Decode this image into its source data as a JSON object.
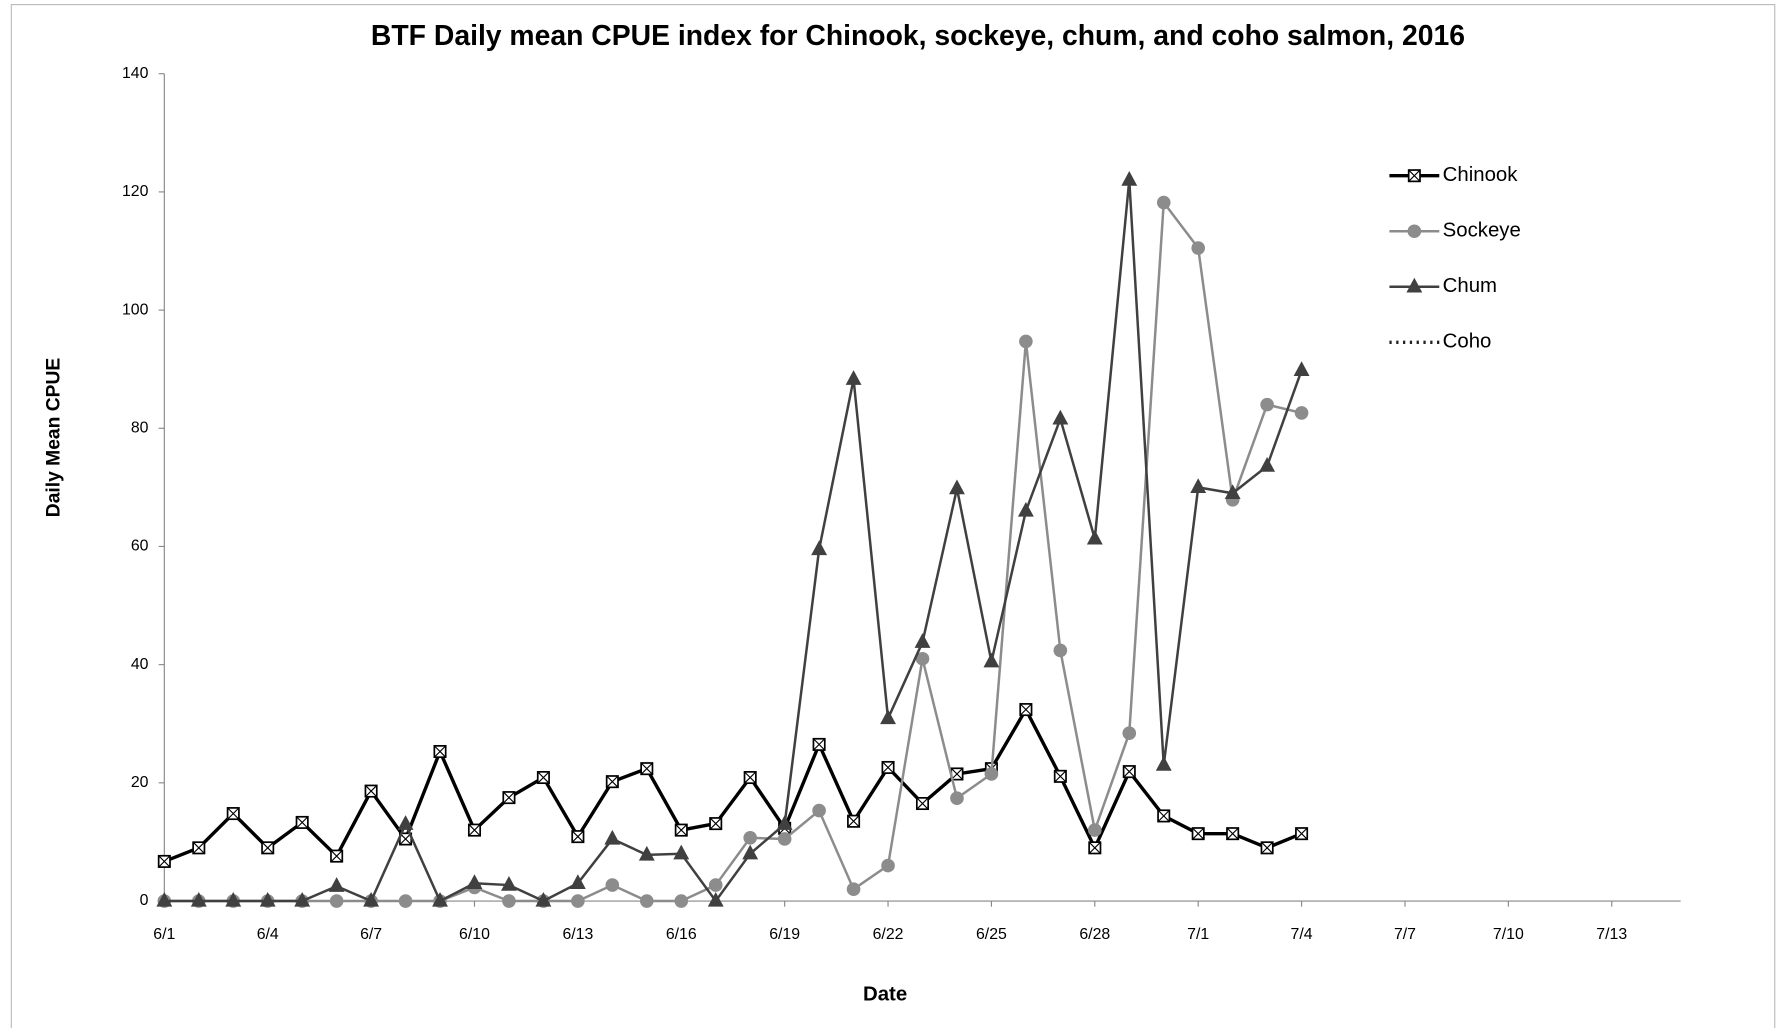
{
  "chart_data": {
    "type": "line",
    "title": "BTF Daily mean CPUE index for Chinook, sockeye, chum, and coho salmon, 2016",
    "x_label": "Date",
    "y_label": "Daily Mean CPUE",
    "categories": [
      "6/1",
      null,
      null,
      "6/4",
      null,
      null,
      "6/7",
      null,
      null,
      "6/10",
      null,
      null,
      "6/13",
      null,
      null,
      "6/16",
      null,
      null,
      "6/19",
      null,
      null,
      "6/22",
      null,
      null,
      "6/25",
      null,
      null,
      "6/28",
      null,
      null,
      "7/1",
      null,
      null,
      "7/4",
      null,
      null,
      "7/7",
      null,
      null,
      "7/10",
      null,
      null,
      "7/13",
      null,
      null
    ],
    "ylim": [
      0,
      140
    ],
    "yticks": [
      0,
      20,
      40,
      60,
      80,
      100,
      120,
      140
    ],
    "grid": false,
    "legend": "right",
    "series": [
      {
        "name": "Chinook",
        "color": "#000000",
        "marker": "square-x",
        "values": [
          6.7,
          9,
          14.8,
          9,
          13.3,
          7.6,
          18.6,
          10.5,
          25.3,
          12,
          17.5,
          20.9,
          10.9,
          20.2,
          22.4,
          12,
          13.1,
          20.9,
          12.3,
          26.5,
          13.5,
          22.6,
          16.5,
          21.5,
          22.4,
          32.4,
          21.1,
          9,
          21.9,
          14.4,
          11.4,
          11.4,
          9,
          11.4,
          null,
          null,
          null,
          null,
          null,
          null,
          null,
          null,
          null,
          null,
          null
        ]
      },
      {
        "name": "Sockeye",
        "color": "#8c8c8c",
        "marker": "circle",
        "values": [
          0,
          0,
          0,
          0,
          0,
          0,
          0,
          0,
          0,
          2.3,
          0,
          0,
          0,
          2.7,
          0,
          0,
          2.7,
          10.7,
          10.5,
          15.3,
          2,
          6,
          41,
          17.4,
          21.5,
          94.7,
          42.4,
          12,
          28.4,
          118.2,
          110.5,
          67.9,
          84,
          82.6,
          null,
          null,
          null,
          null,
          null,
          null,
          null,
          null,
          null,
          null,
          null
        ]
      },
      {
        "name": "Chum",
        "color": "#404040",
        "marker": "triangle",
        "values": [
          0,
          0,
          0,
          0,
          0,
          2.5,
          0,
          13,
          0,
          3,
          2.7,
          0,
          3,
          10.5,
          7.8,
          8,
          0,
          8,
          13,
          59.5,
          88.3,
          30.9,
          43.8,
          69.8,
          40.5,
          66,
          81.6,
          61.3,
          122,
          23,
          70,
          69,
          73.6,
          89.8,
          null,
          null,
          null,
          null,
          null,
          null,
          null,
          null,
          null,
          null,
          null
        ]
      },
      {
        "name": "Coho",
        "color": "#222222",
        "marker": "dotted",
        "values": [
          null,
          null,
          null,
          null,
          null,
          null,
          null,
          null,
          null,
          null,
          null,
          null,
          null,
          null,
          null,
          null,
          null,
          null,
          null,
          null,
          null,
          null,
          null,
          null,
          null,
          null,
          null,
          null,
          null,
          null,
          null,
          null,
          null,
          null,
          null,
          null,
          null,
          null,
          null,
          null,
          null,
          null,
          null,
          null,
          null
        ]
      }
    ]
  }
}
